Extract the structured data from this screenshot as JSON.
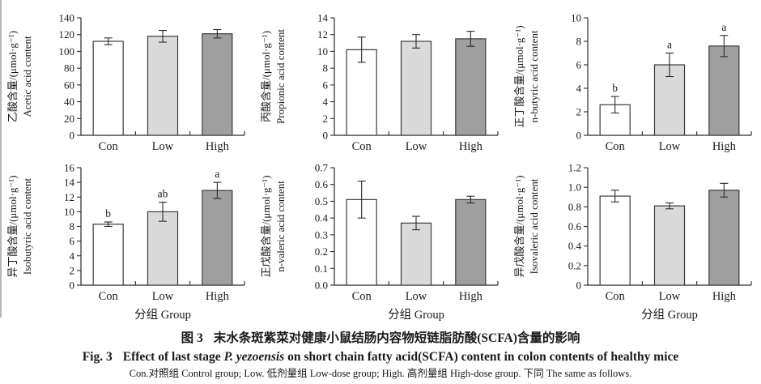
{
  "figure": {
    "bar_colors": [
      "#ffffff",
      "#dadada",
      "#9f9f9f"
    ],
    "bar_border": "#3b3b3b",
    "axis_color": "#2a2a2a"
  },
  "chart_data": [
    {
      "type": "bar",
      "name": "acetic-acid",
      "ylabel_zh": "乙酸含量/(μmol·g⁻¹)",
      "ylabel_en": "Acetic acid content",
      "xlabel": "",
      "categories": [
        "Con",
        "Low",
        "High"
      ],
      "values": [
        112,
        118,
        121
      ],
      "errors": [
        4,
        7,
        5
      ],
      "letters": [
        "",
        "",
        ""
      ],
      "ylim": [
        0,
        140
      ],
      "ytick_values": [
        0,
        20,
        40,
        60,
        80,
        100,
        120,
        140
      ],
      "ytick_labels": [
        "0",
        "20",
        "40",
        "60",
        "80",
        "100",
        "120",
        "140"
      ],
      "legend": "none",
      "grid": false
    },
    {
      "type": "bar",
      "name": "propionic-acid",
      "ylabel_zh": "丙酸含量/(μmol·g⁻¹)",
      "ylabel_en": "Propionic acid content",
      "xlabel": "",
      "categories": [
        "Con",
        "Low",
        "High"
      ],
      "values": [
        10.2,
        11.2,
        11.5
      ],
      "errors": [
        1.5,
        0.8,
        0.9
      ],
      "letters": [
        "",
        "",
        ""
      ],
      "ylim": [
        0,
        14
      ],
      "ytick_values": [
        0,
        2,
        4,
        6,
        8,
        10,
        12,
        14
      ],
      "ytick_labels": [
        "0",
        "2",
        "4",
        "6",
        "8",
        "10",
        "12",
        "14"
      ],
      "legend": "none",
      "grid": false
    },
    {
      "type": "bar",
      "name": "n-butyric-acid",
      "ylabel_zh": "正丁酸含量/(μmol·g⁻¹)",
      "ylabel_en": "n-butyric acid content",
      "xlabel": "",
      "categories": [
        "Con",
        "Low",
        "High"
      ],
      "values": [
        2.6,
        6.0,
        7.6
      ],
      "errors": [
        0.7,
        1.0,
        0.9
      ],
      "letters": [
        "b",
        "a",
        "a"
      ],
      "ylim": [
        0,
        10
      ],
      "ytick_values": [
        0,
        2,
        4,
        6,
        8,
        10
      ],
      "ytick_labels": [
        "0",
        "2",
        "4",
        "6",
        "8",
        "10"
      ],
      "legend": "none",
      "grid": false
    },
    {
      "type": "bar",
      "name": "isobutyric-acid",
      "ylabel_zh": "异丁酸含量/(μmol·g⁻¹)",
      "ylabel_en": "Isobutyric acid content",
      "xlabel": "分组 Group",
      "categories": [
        "Con",
        "Low",
        "High"
      ],
      "values": [
        8.3,
        10.0,
        12.9
      ],
      "errors": [
        0.3,
        1.3,
        1.1
      ],
      "letters": [
        "b",
        "ab",
        "a"
      ],
      "ylim": [
        0,
        16
      ],
      "ytick_values": [
        0,
        2,
        4,
        6,
        8,
        10,
        12,
        14,
        16
      ],
      "ytick_labels": [
        "0",
        "2",
        "4",
        "6",
        "8",
        "10",
        "12",
        "14",
        "16"
      ],
      "legend": "none",
      "grid": false
    },
    {
      "type": "bar",
      "name": "n-valeric-acid",
      "ylabel_zh": "正戊酸含量/(μmol·g⁻¹)",
      "ylabel_en": "n-valeric acid content",
      "xlabel": "分组 Group",
      "categories": [
        "Con",
        "Low",
        "High"
      ],
      "values": [
        0.51,
        0.37,
        0.51
      ],
      "errors": [
        0.11,
        0.04,
        0.02
      ],
      "letters": [
        "",
        "",
        ""
      ],
      "ylim": [
        0,
        0.7
      ],
      "ytick_values": [
        0,
        0.1,
        0.2,
        0.3,
        0.4,
        0.5,
        0.6,
        0.7
      ],
      "ytick_labels": [
        "0.0",
        "0.1",
        "0.2",
        "0.3",
        "0.4",
        "0.5",
        "0.6",
        "0.7"
      ],
      "legend": "none",
      "grid": false
    },
    {
      "type": "bar",
      "name": "isovaleric-acid",
      "ylabel_zh": "异戊酸含量/(μmol·g⁻¹)",
      "ylabel_en": "Isovaleric acid content",
      "xlabel": "分组 Group",
      "categories": [
        "Con",
        "Low",
        "High"
      ],
      "values": [
        0.91,
        0.81,
        0.97
      ],
      "errors": [
        0.06,
        0.03,
        0.07
      ],
      "letters": [
        "",
        "",
        ""
      ],
      "ylim": [
        0,
        1.2
      ],
      "ytick_values": [
        0,
        0.2,
        0.4,
        0.6,
        0.8,
        1.0,
        1.2
      ],
      "ytick_labels": [
        "0",
        "0.2",
        "0.4",
        "0.6",
        "0.8",
        "1.0",
        "1.2"
      ],
      "legend": "none",
      "grid": false
    }
  ],
  "caption": {
    "zh_label": "图 3",
    "zh_text": "末水条斑紫菜对健康小鼠结肠内容物短链脂肪酸(SCFA)含量的影响",
    "en_label": "Fig. 3",
    "en_pre": "Effect of last stage",
    "en_italic": "P. yezoensis",
    "en_post": "on short chain fatty acid(SCFA) content in colon contents of healthy mice",
    "note": "Con.对照组 Control group; Low. 低剂量组 Low-dose group; High. 高剂量组 High-dose group. 下同 The same as follows."
  }
}
